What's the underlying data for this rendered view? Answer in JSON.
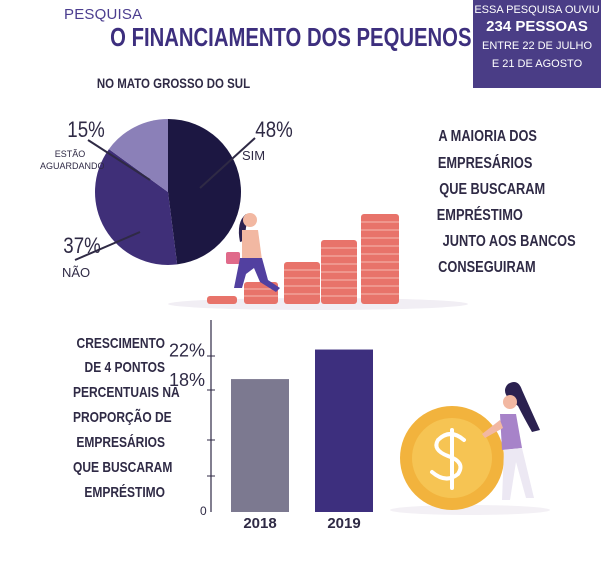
{
  "header": {
    "kicker": "PESQUISA",
    "title": "O FINANCIAMENTO DOS PEQUENOS NEGÓCIOS"
  },
  "info_box": {
    "lines": [
      "ESSA PESQUISA OUVIU",
      "234 PESSOAS",
      "ENTRE 22 DE JULHO",
      "E 21 DE AGOSTO"
    ]
  },
  "colors": {
    "brand": "#3d2f7e",
    "sim": "#1c1742",
    "nao": "#3f2f78",
    "aguardando": "#8b80b8",
    "bar_2018": "#7c7990",
    "bar_2019": "#3d2f7e",
    "coin": "#f2b33d",
    "coins_stack": "#e8736a"
  },
  "chart_data": [
    {
      "type": "pie",
      "subtitle": "NO MATO GROSSO DO SUL",
      "slices": [
        {
          "label": "SIM",
          "value": 48,
          "display": "48%"
        },
        {
          "label": "NÃO",
          "value": 37,
          "display": "37%"
        },
        {
          "label": "ESTÃO AGUARDANDO",
          "value": 15,
          "display": "15%"
        }
      ]
    },
    {
      "type": "bar",
      "categories": [
        "2018",
        "2019"
      ],
      "values": [
        18,
        22
      ],
      "value_labels": [
        "18%",
        "22%"
      ],
      "y_tick_label": "0",
      "ylim": [
        0,
        26
      ]
    }
  ],
  "pie_labels": {
    "sim_pct": "48%",
    "sim": "SIM",
    "nao_pct": "37%",
    "nao": "NÃO",
    "aguardando_pct": "15%",
    "aguardando_line1": "ESTÃO",
    "aguardando_line2": "AGUARDANDO"
  },
  "right_text": [
    "A MAIORIA DOS",
    "EMPRESÁRIOS",
    "QUE BUSCARAM",
    "EMPRÉSTIMO",
    "JUNTO AOS BANCOS",
    "CONSEGUIRAM"
  ],
  "left_text": [
    "CRESCIMENTO",
    "DE 4 PONTOS",
    "PERCENTUAIS NA",
    "PROPORÇÃO DE",
    "EMPRESÁRIOS",
    "QUE BUSCARAM",
    "EMPRÉSTIMO"
  ]
}
